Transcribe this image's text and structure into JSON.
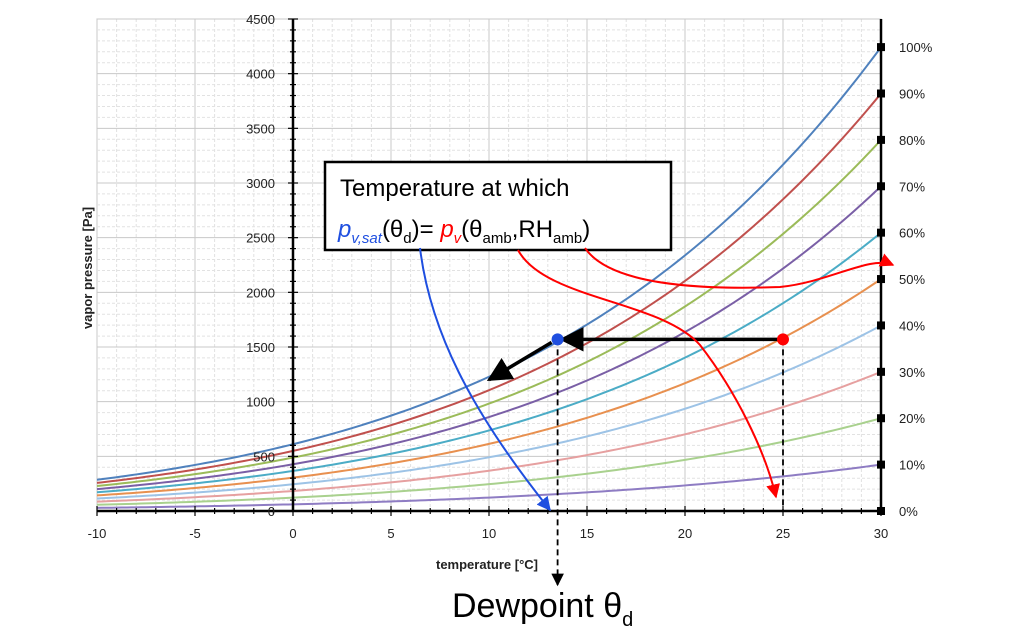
{
  "chart_data": {
    "type": "line",
    "title": "",
    "xlabel": "temperature [°C]",
    "ylabel": "vapor pressure [Pa]",
    "xlim": [
      -10,
      30
    ],
    "ylim": [
      0,
      4500
    ],
    "x_ticks": [
      "-10",
      "-5",
      "0",
      "5",
      "10",
      "15",
      "20",
      "25",
      "30"
    ],
    "y_ticks": [
      "0",
      "500",
      "1000",
      "1500",
      "2000",
      "2500",
      "3000",
      "3500",
      "4000",
      "4500"
    ],
    "grid": true,
    "curve_formula": "saturation vapor pressure × RH",
    "series": [
      {
        "name": "10%",
        "rh": 0.1,
        "color": "#8e7cc3"
      },
      {
        "name": "20%",
        "rh": 0.2,
        "color": "#a9d18e"
      },
      {
        "name": "30%",
        "rh": 0.3,
        "color": "#e6a0a0"
      },
      {
        "name": "40%",
        "rh": 0.4,
        "color": "#9dc3e6"
      },
      {
        "name": "50%",
        "rh": 0.5,
        "color": "#e8904f"
      },
      {
        "name": "60%",
        "rh": 0.6,
        "color": "#4bacc6"
      },
      {
        "name": "70%",
        "rh": 0.7,
        "color": "#7a5fa6"
      },
      {
        "name": "80%",
        "rh": 0.8,
        "color": "#9bbb59"
      },
      {
        "name": "90%",
        "rh": 0.9,
        "color": "#c0504d"
      },
      {
        "name": "100%",
        "rh": 1.0,
        "color": "#4f81bd"
      }
    ],
    "rh_labels": [
      "0%",
      "10%",
      "20%",
      "30%",
      "40%",
      "50%",
      "60%",
      "70%",
      "80%",
      "90%",
      "100%"
    ],
    "points": {
      "ambient": {
        "x": 25,
        "y": 1570,
        "color": "#ff0000"
      },
      "dewpoint": {
        "x": 13.5,
        "y": 1570,
        "color": "#1f4fe0"
      }
    },
    "annotation": {
      "line1": "Temperature at which",
      "pvsat": "p",
      "pvsat_sub": "v,sat",
      "theta_d_open": "(θ",
      "theta_d_sub": "d",
      "equals": ")= ",
      "pv": "p",
      "pv_sub": "v",
      "amb_open": "(θ",
      "amb_sub1": "amb",
      "comma_rh": ",RH",
      "amb_sub2": "amb",
      "close": ")"
    },
    "dewpoint_label": {
      "text": "Dewpoint θ",
      "sub": "d"
    }
  }
}
